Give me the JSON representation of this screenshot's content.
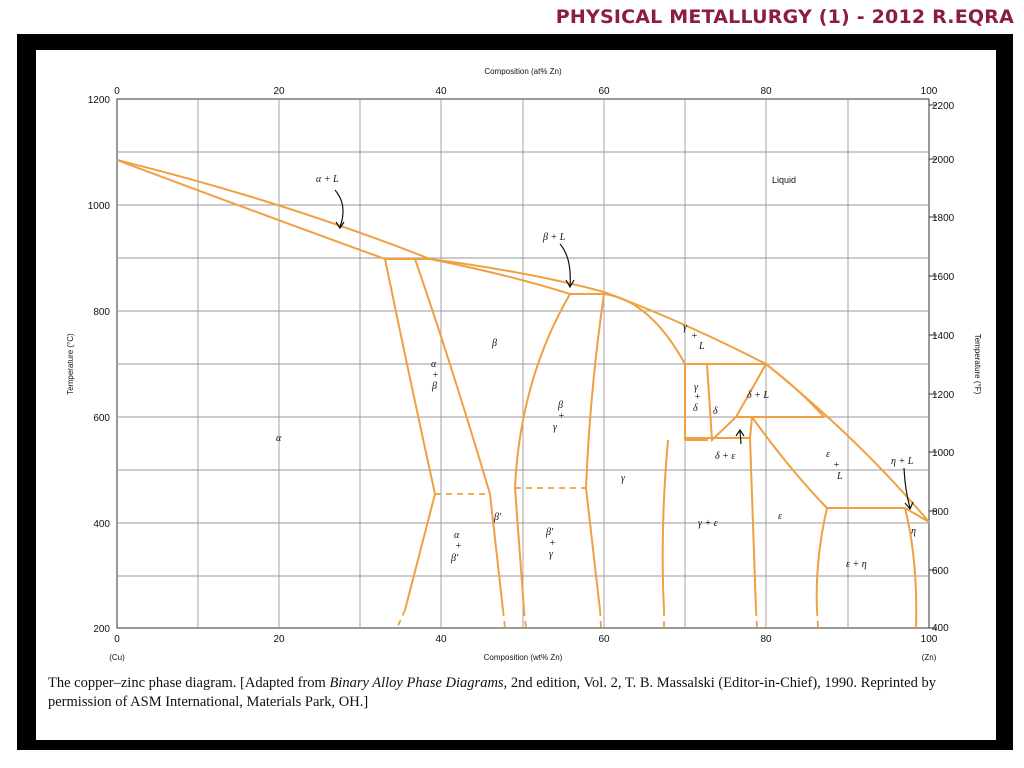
{
  "header": {
    "title": "PHYSICAL METALLURGY (1) - 2012 R.EQRA"
  },
  "diagram": {
    "top_axis_title": "Composition (at% Zn)",
    "bottom_axis_title": "Composition (wt% Zn)",
    "left_axis_title": "Temperature (°C)",
    "right_axis_title": "Temperature (°F)",
    "bottom_ticks": [
      "0",
      "20",
      "40",
      "60",
      "80",
      "100"
    ],
    "top_ticks": [
      "0",
      "20",
      "40",
      "60",
      "80",
      "100"
    ],
    "left_ticks": [
      "1200",
      "1000",
      "800",
      "600",
      "400",
      "200"
    ],
    "right_ticks": [
      "2200",
      "2000",
      "1800",
      "1600",
      "1400",
      "1200",
      "1000",
      "800",
      "600",
      "400"
    ],
    "cu_label": "(Cu)",
    "zn_label": "(Zn)",
    "liquid_label": "Liquid",
    "phase_labels": {
      "alpha_L": "α + L",
      "beta_L": "β + L",
      "alpha": "α",
      "beta": "β",
      "alpha_beta": [
        "α",
        "+",
        "β"
      ],
      "beta_gamma": [
        "β",
        "+",
        "γ"
      ],
      "gamma_L": [
        "γ",
        "+",
        "L"
      ],
      "gamma_delta": [
        "γ",
        "+",
        "δ"
      ],
      "delta": "δ",
      "delta_L": "δ + L",
      "delta_eps": "δ + ε",
      "gamma": "γ",
      "eps_L": [
        "ε",
        "+",
        "L"
      ],
      "eta_L": "η + L",
      "beta_prime": "β′",
      "alpha_betap": [
        "α",
        "+",
        "β′"
      ],
      "betap_gamma": [
        "β′",
        "+",
        "γ"
      ],
      "gamma_eps": "γ + ε",
      "eps": "ε",
      "eta": "η",
      "eps_eta": "ε + η"
    },
    "line_color": "#F0A040",
    "grid_color": "#9a9a9a"
  },
  "caption": {
    "part1": "The copper–zinc phase diagram. [Adapted from ",
    "italic": "Binary Alloy Phase Diagrams,",
    "part2": " 2nd edition, Vol. 2, T. B. Massalski (Editor-in-Chief), 1990. Reprinted by permission of ASM International, Materials Park, OH.]"
  }
}
